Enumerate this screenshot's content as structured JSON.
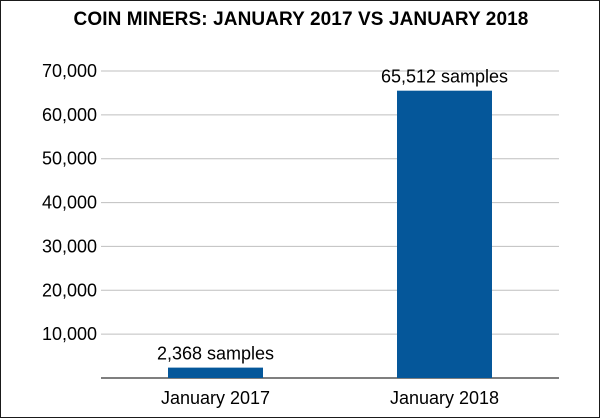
{
  "chart_data": {
    "type": "bar",
    "title": "COIN MINERS: JANUARY 2017 VS JANUARY 2018",
    "categories": [
      "January 2017",
      "January 2018"
    ],
    "values": [
      2368,
      65512
    ],
    "data_labels": [
      "2,368 samples",
      "65,512 samples"
    ],
    "y_ticks": [
      10000,
      20000,
      30000,
      40000,
      50000,
      60000,
      70000
    ],
    "y_tick_labels": [
      "10,000",
      "20,000",
      "30,000",
      "40,000",
      "50,000",
      "60,000",
      "70,000"
    ],
    "ylim": [
      0,
      70000
    ],
    "grid": true,
    "legend": "none",
    "xlabel": "",
    "ylabel": ""
  },
  "colors": {
    "bar": "#05579a",
    "grid": "#bfbfbf",
    "axis": "#555555",
    "text": "#000000"
  }
}
